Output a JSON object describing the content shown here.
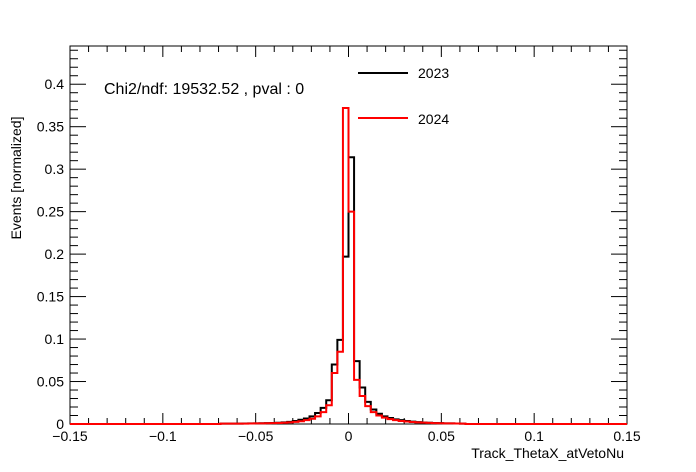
{
  "chart_data": {
    "type": "line",
    "style": "step-histogram",
    "title": "",
    "xlabel": "Track_ThetaX_atVetoNu",
    "ylabel": "Events [normalized]",
    "xlim": [
      -0.15,
      0.15
    ],
    "ylim": [
      0,
      0.445
    ],
    "grid": false,
    "legend_position": "top-right",
    "annotation": "Chi2/ndf: 19532.52 , pval : 0",
    "xticks": [
      -0.15,
      -0.1,
      -0.05,
      0,
      0.05,
      0.1,
      0.15
    ],
    "xtick_labels": [
      "−0.15",
      "−0.1",
      "−0.05",
      "0",
      "0.05",
      "0.1",
      "0.15"
    ],
    "yticks": [
      0,
      0.05,
      0.1,
      0.15,
      0.2,
      0.25,
      0.3,
      0.35,
      0.4
    ],
    "ytick_labels": [
      "0",
      "0.05",
      "0.1",
      "0.15",
      "0.2",
      "0.25",
      "0.3",
      "0.35",
      "0.4"
    ],
    "bin_edges": [
      -0.069,
      -0.066,
      -0.063,
      -0.06,
      -0.057,
      -0.054,
      -0.051,
      -0.048,
      -0.045,
      -0.042,
      -0.039,
      -0.036,
      -0.033,
      -0.03,
      -0.027,
      -0.024,
      -0.021,
      -0.018,
      -0.015,
      -0.012,
      -0.009,
      -0.006,
      -0.003,
      0,
      0.003,
      0.006,
      0.009,
      0.012,
      0.015,
      0.018,
      0.021,
      0.024,
      0.027,
      0.03,
      0.033,
      0.036,
      0.039,
      0.042,
      0.045,
      0.048,
      0.051,
      0.054,
      0.057,
      0.06,
      0.063
    ],
    "series": [
      {
        "name": "2023",
        "color": "#000000",
        "values": [
          0.0005,
          0.0005,
          0.0005,
          0.0005,
          0.0006,
          0.0007,
          0.0008,
          0.0009,
          0.001,
          0.0012,
          0.0015,
          0.0019,
          0.0025,
          0.0035,
          0.005,
          0.0065,
          0.009,
          0.013,
          0.019,
          0.028,
          0.07,
          0.099,
          0.197,
          0.314,
          0.074,
          0.043,
          0.026,
          0.017,
          0.012,
          0.009,
          0.007,
          0.0055,
          0.0045,
          0.0035,
          0.0028,
          0.0022,
          0.0018,
          0.0014,
          0.0012,
          0.001,
          0.0008,
          0.0007,
          0.0006,
          0.0005
        ]
      },
      {
        "name": "2024",
        "color": "#ff0000",
        "values": [
          0.0005,
          0.0005,
          0.0005,
          0.0005,
          0.0005,
          0.0006,
          0.0007,
          0.0008,
          0.0009,
          0.001,
          0.0012,
          0.0015,
          0.0019,
          0.0025,
          0.0033,
          0.0045,
          0.0062,
          0.009,
          0.014,
          0.022,
          0.06,
          0.085,
          0.372,
          0.25,
          0.052,
          0.033,
          0.021,
          0.014,
          0.01,
          0.0075,
          0.0058,
          0.0045,
          0.0036,
          0.0029,
          0.0023,
          0.0019,
          0.0016,
          0.0013,
          0.0011,
          0.0009,
          0.0008,
          0.0007,
          0.0006,
          0.0005
        ]
      }
    ]
  }
}
